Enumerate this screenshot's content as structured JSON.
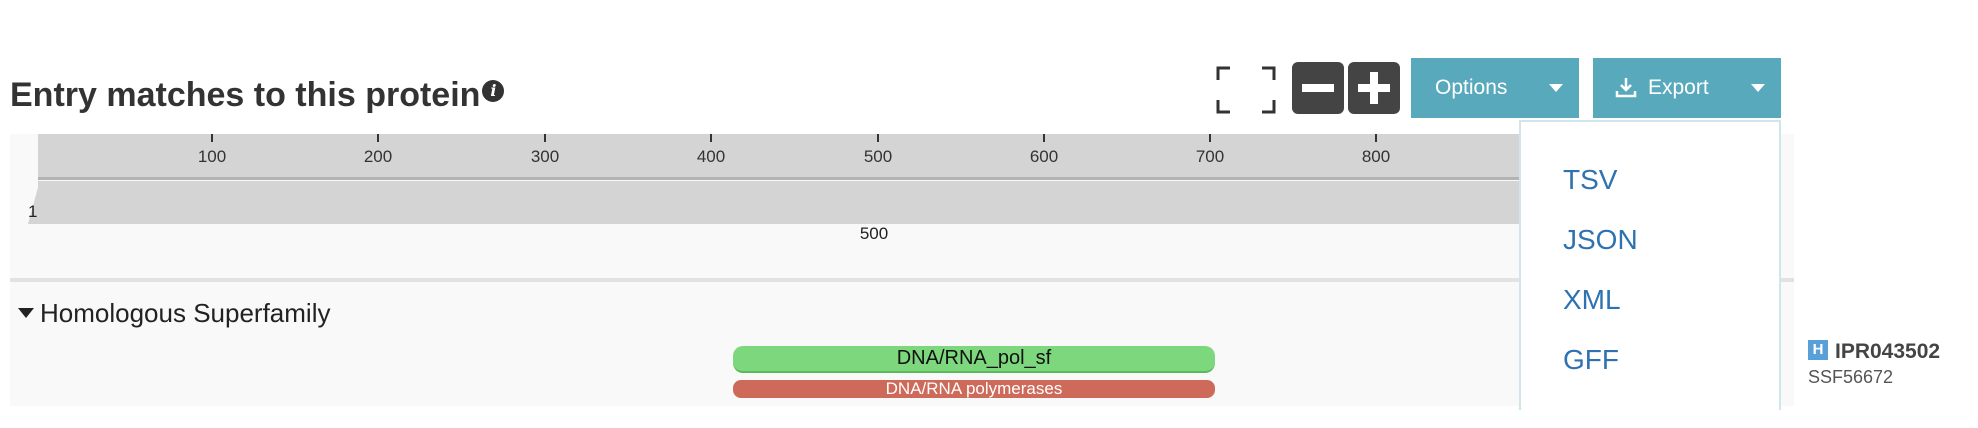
{
  "header": {
    "title": "Entry matches to this protein",
    "info_icon": "info-icon",
    "fullscreen_icon": "fullscreen-icon",
    "zoom_out_icon": "minus-icon",
    "zoom_in_icon": "plus-icon",
    "options_label": "Options",
    "export_label": "Export",
    "export_icon": "download-icon"
  },
  "ruler": {
    "ticks": [
      "100",
      "200",
      "300",
      "400",
      "500",
      "600",
      "700",
      "800"
    ],
    "start_label": "1",
    "center_label": "500"
  },
  "section": {
    "title": "Homologous Superfamily",
    "match_label": "DNA/RNA_pol_sf",
    "sub_match_label": "DNA/RNA polymerases",
    "entry_badge": "H",
    "entry_accession": "IPR043502",
    "entry_member": "SSF56672"
  },
  "export_menu": {
    "items": [
      "TSV",
      "JSON",
      "XML",
      "GFF"
    ]
  },
  "colors": {
    "accent": "#59a9bd",
    "match_green": "#7dd77d",
    "match_red": "#cd6a5a",
    "link_blue": "#2e72b2"
  }
}
